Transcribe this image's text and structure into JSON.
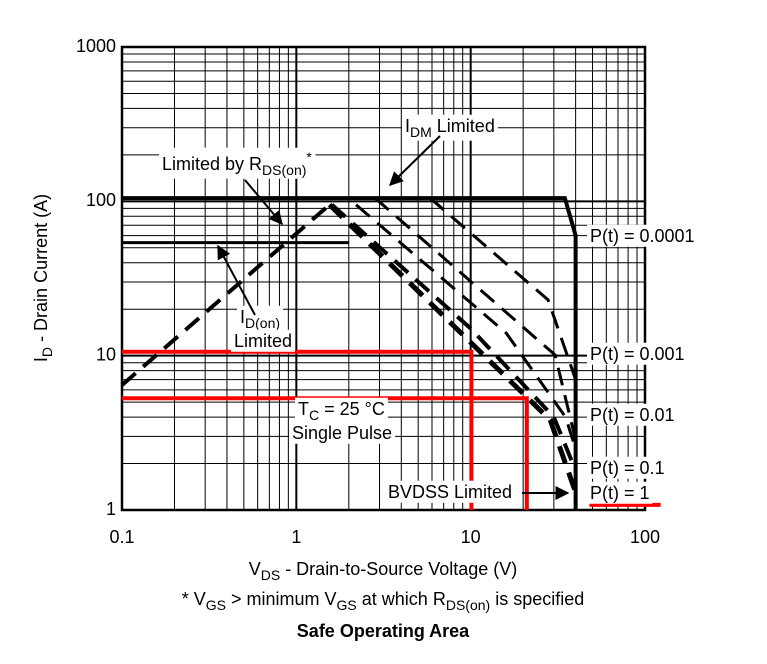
{
  "chart_data": {
    "type": "line",
    "title": "Safe Operating Area",
    "x_label": [
      {
        "text": "V"
      },
      {
        "text": "DS",
        "sub": true
      },
      {
        "text": " - Drain-to-Source Voltage (V)"
      }
    ],
    "y_label": [
      {
        "text": "I"
      },
      {
        "text": "D",
        "sub": true
      },
      {
        "text": " - Drain Current (A)"
      }
    ],
    "footnote": [
      {
        "text": "* V"
      },
      {
        "text": "GS",
        "sub": true
      },
      {
        "text": " > minimum V"
      },
      {
        "text": "GS",
        "sub": true
      },
      {
        "text": " at which R"
      },
      {
        "text": "DS(on)",
        "sub": true
      },
      {
        "text": " is specified"
      }
    ],
    "log_x": true,
    "log_y": true,
    "grid": true,
    "xlim": [
      0.1,
      100
    ],
    "xticks": [
      0.1,
      1,
      10,
      100
    ],
    "ylim": [
      1,
      1000
    ],
    "yticks": [
      1,
      10,
      100,
      1000
    ],
    "series": [
      {
        "x": [
          0.1,
          34.7,
          40,
          40
        ],
        "y": [
          105,
          105,
          60,
          1
        ],
        "color": "#000000",
        "width": 4,
        "dashed": false
      },
      {
        "x": [
          0.1,
          2
        ],
        "y": [
          54,
          54
        ],
        "color": "#000000",
        "width": 3,
        "dashed": false
      },
      {
        "x": [
          0.1,
          1.55
        ],
        "y": [
          6.45,
          95
        ],
        "color": "#000000",
        "width": 4,
        "dashed": true
      },
      {
        "x": [
          5.85,
          27.8,
          40
        ],
        "y": [
          105,
          23,
          7
        ],
        "color": "#000000",
        "width": 3,
        "dashed": true
      },
      {
        "x": [
          2.83,
          30.5,
          40
        ],
        "y": [
          105,
          10.1,
          2.84
        ],
        "color": "#000000",
        "width": 3,
        "dashed": true
      },
      {
        "x": [
          2.2,
          16,
          35,
          40
        ],
        "y": [
          95,
          14,
          4,
          2.5
        ],
        "color": "#000000",
        "width": 3,
        "dashed": true
      },
      {
        "x": [
          1.6,
          10,
          30,
          40
        ],
        "y": [
          95,
          15,
          4,
          1.8
        ],
        "color": "#000000",
        "width": 4,
        "dashed": true
      },
      {
        "x": [
          1.55,
          28.6,
          40
        ],
        "y": [
          95,
          3.83,
          1.3
        ],
        "color": "#000000",
        "width": 5,
        "dashed": true
      },
      {
        "x": [
          0.1,
          10.1,
          10.1
        ],
        "y": [
          10.6,
          10.6,
          1
        ],
        "color": "#ff0000",
        "width": 4,
        "dashed": false
      },
      {
        "x": [
          0.1,
          21,
          21
        ],
        "y": [
          5.3,
          5.3,
          1
        ],
        "color": "#ff0000",
        "width": 4,
        "dashed": false
      },
      {
        "x": [
          48,
          123
        ],
        "y": [
          1.08,
          1.08
        ],
        "color": "#ff0000",
        "width": 4,
        "dashed": false
      }
    ],
    "annotations": [
      [
        {
          "text": "I"
        },
        {
          "text": "DM",
          "sub": true
        },
        {
          "text": " Limited"
        }
      ],
      [
        {
          "text": "Limited by R"
        },
        {
          "text": "DS(on)",
          "sub": true
        },
        {
          "text": "*",
          "sup": true
        }
      ],
      [
        {
          "text": "I"
        },
        {
          "text": "D(on)",
          "sub": true
        }
      ],
      [
        {
          "text": "Limited"
        }
      ],
      [
        {
          "text": "T"
        },
        {
          "text": "C",
          "sub": true
        },
        {
          "text": " = 25 °C"
        }
      ],
      [
        {
          "text": "Single Pulse"
        }
      ],
      [
        {
          "text": "BVDSS Limited"
        }
      ],
      [
        {
          "text": "P(t) = 0.0001"
        }
      ],
      [
        {
          "text": "P(t) = 0.001"
        }
      ],
      [
        {
          "text": "P(t) = 0.01"
        }
      ],
      [
        {
          "text": "P(t) = 0.1"
        }
      ],
      [
        {
          "text": "P(t) = 1"
        }
      ]
    ]
  }
}
